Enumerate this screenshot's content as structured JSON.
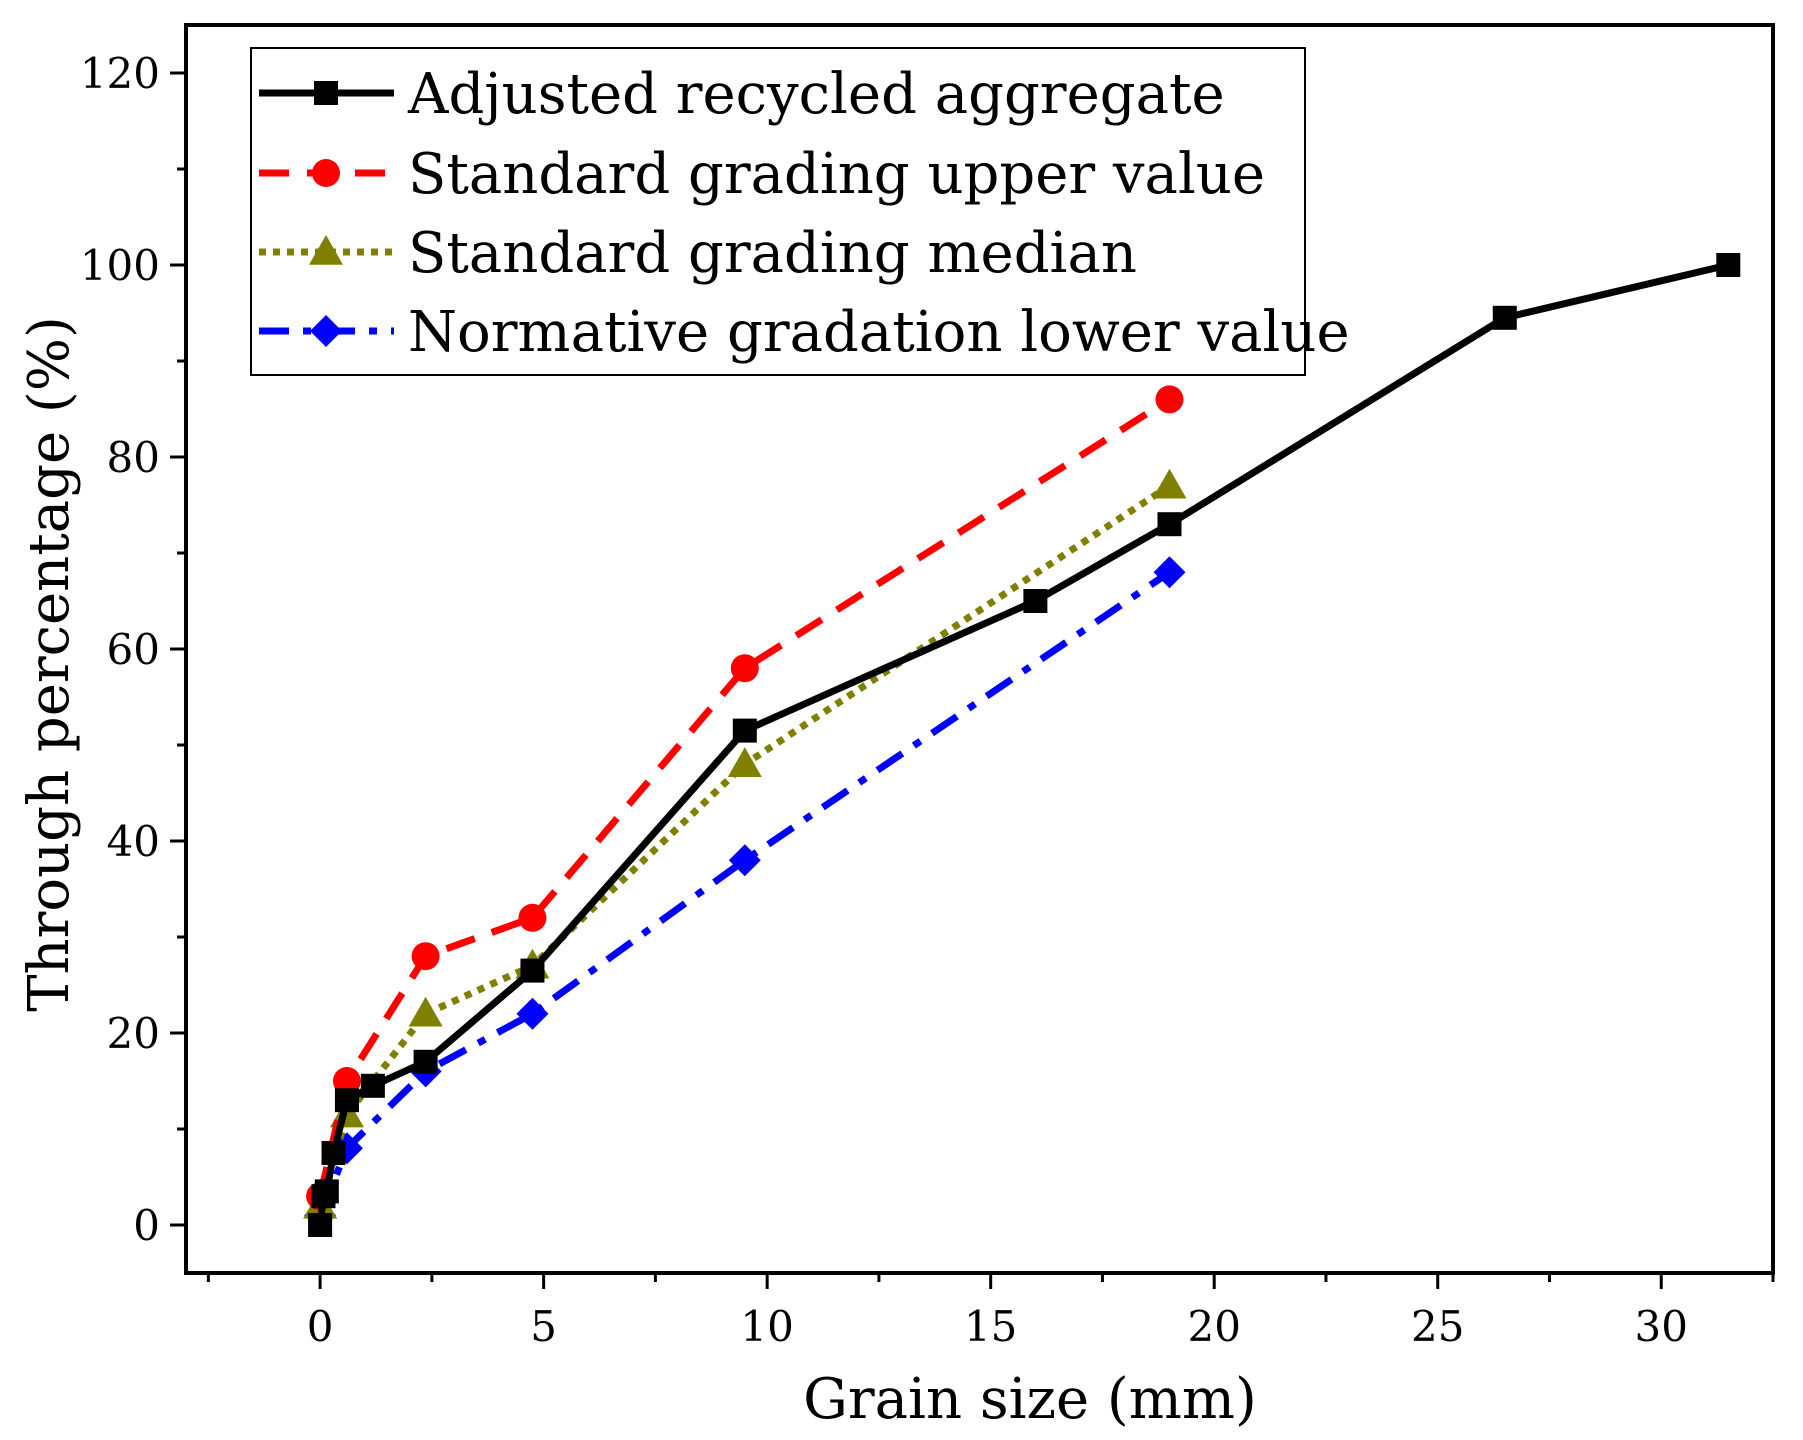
{
  "chart_data": {
    "type": "line",
    "xlabel": "Grain size (mm)",
    "ylabel": "Through percentage (%)",
    "xlim": [
      -3,
      32.5
    ],
    "ylim": [
      -5,
      125
    ],
    "x_ticks": [
      0,
      5,
      10,
      15,
      20,
      25,
      30
    ],
    "y_ticks": [
      0,
      20,
      40,
      60,
      80,
      100,
      120
    ],
    "x_tick_labels": [
      "0",
      "5",
      "10",
      "15",
      "20",
      "25",
      "30"
    ],
    "y_tick_labels": [
      "0",
      "20",
      "40",
      "60",
      "80",
      "100",
      "120"
    ],
    "legend_position": "top-left",
    "grid": false,
    "series": [
      {
        "name": "Adjusted recycled aggregate",
        "color": "#000000",
        "line_style": "solid",
        "marker": "square",
        "x": [
          0,
          0.075,
          0.15,
          0.3,
          0.6,
          1.18,
          2.36,
          4.75,
          9.5,
          16,
          19,
          26.5,
          31.5
        ],
        "y": [
          0,
          3,
          3.5,
          7.5,
          13,
          14.5,
          17,
          26.5,
          51.5,
          65,
          73,
          94.5,
          100
        ]
      },
      {
        "name": "Standard grading upper value",
        "color": "#ff0000",
        "line_style": "dashed",
        "marker": "circle",
        "x": [
          0,
          0.6,
          2.36,
          4.75,
          9.5,
          19
        ],
        "y": [
          3,
          15,
          28,
          32,
          58,
          86
        ]
      },
      {
        "name": "Standard grading median",
        "color": "#808000",
        "line_style": "dotted",
        "marker": "triangle",
        "x": [
          0,
          0.6,
          2.36,
          4.75,
          9.5,
          19
        ],
        "y": [
          2,
          11.5,
          22,
          27,
          48,
          77
        ]
      },
      {
        "name": "Normative gradation lower value",
        "color": "#0000ff",
        "line_style": "dashdot",
        "marker": "diamond",
        "x": [
          0,
          0.6,
          2.36,
          4.75,
          9.5,
          19
        ],
        "y": [
          1,
          8,
          16,
          22,
          38,
          68
        ]
      }
    ]
  }
}
